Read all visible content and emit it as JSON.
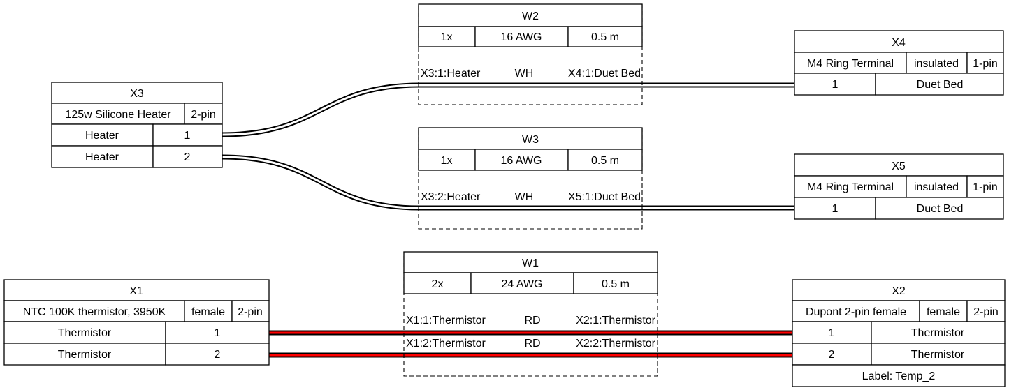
{
  "connectors": {
    "X3": {
      "name": "X3",
      "attrs": [
        "125w Silicone Heater",
        "2-pin"
      ],
      "pins": [
        {
          "label": "Heater",
          "num": "1"
        },
        {
          "label": "Heater",
          "num": "2"
        }
      ]
    },
    "X4": {
      "name": "X4",
      "attrs": [
        "M4 Ring Terminal",
        "insulated",
        "1-pin"
      ],
      "pins": [
        {
          "num": "1",
          "label": "Duet Bed"
        }
      ]
    },
    "X5": {
      "name": "X5",
      "attrs": [
        "M4 Ring Terminal",
        "insulated",
        "1-pin"
      ],
      "pins": [
        {
          "num": "1",
          "label": "Duet Bed"
        }
      ]
    },
    "X1": {
      "name": "X1",
      "attrs": [
        "NTC 100K thermistor, 3950K",
        "female",
        "2-pin"
      ],
      "pins": [
        {
          "label": "Thermistor",
          "num": "1"
        },
        {
          "label": "Thermistor",
          "num": "2"
        }
      ]
    },
    "X2": {
      "name": "X2",
      "attrs": [
        "Dupont 2-pin female",
        "female",
        "2-pin"
      ],
      "pins": [
        {
          "num": "1",
          "label": "Thermistor"
        },
        {
          "num": "2",
          "label": "Thermistor"
        }
      ],
      "footer": "Label: Temp_2"
    }
  },
  "cables": {
    "W2": {
      "name": "W2",
      "attrs": [
        "1x",
        "16 AWG",
        "0.5 m"
      ],
      "wires": [
        {
          "from": "X3:1:Heater",
          "color": "WH",
          "to": "X4:1:Duet Bed"
        }
      ]
    },
    "W3": {
      "name": "W3",
      "attrs": [
        "1x",
        "16 AWG",
        "0.5 m"
      ],
      "wires": [
        {
          "from": "X3:2:Heater",
          "color": "WH",
          "to": "X5:1:Duet Bed"
        }
      ]
    },
    "W1": {
      "name": "W1",
      "attrs": [
        "2x",
        "24 AWG",
        "0.5 m"
      ],
      "wires": [
        {
          "from": "X1:1:Thermistor",
          "color": "RD",
          "to": "X2:1:Thermistor"
        },
        {
          "from": "X1:2:Thermistor",
          "color": "RD",
          "to": "X2:2:Thermistor"
        }
      ]
    }
  },
  "colors": {
    "WH": "#ffffff",
    "RD": "#ff0000",
    "outline": "#000000"
  }
}
